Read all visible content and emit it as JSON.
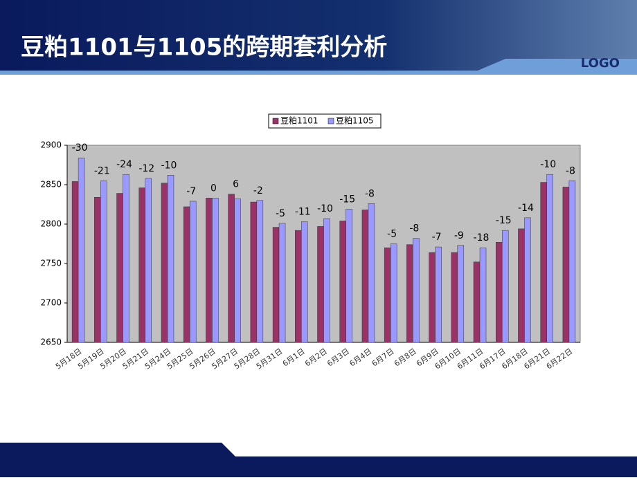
{
  "header": {
    "title": "豆粕1101与1105的跨期套利分析",
    "logo": "LOGO"
  },
  "chart_data": {
    "type": "bar",
    "categories": [
      "5月18日",
      "5月19日",
      "5月20日",
      "5月21日",
      "5月24日",
      "5月25日",
      "5月26日",
      "5月27日",
      "5月28日",
      "5月31日",
      "6月1日",
      "6月2日",
      "6月3日",
      "6月4日",
      "6月7日",
      "6月8日",
      "6月9日",
      "6月10日",
      "6月11日",
      "6月17日",
      "6月18日",
      "6月21日",
      "6月22日"
    ],
    "series": [
      {
        "name": "豆粕1101",
        "color": "#993366",
        "values": [
          2854,
          2834,
          2839,
          2846,
          2852,
          2822,
          2833,
          2838,
          2828,
          2796,
          2792,
          2797,
          2804,
          2818,
          2770,
          2774,
          2764,
          2764,
          2752,
          2777,
          2794,
          2853,
          2847
        ]
      },
      {
        "name": "豆粕1105",
        "color": "#9999ff",
        "values": [
          2884,
          2855,
          2863,
          2858,
          2862,
          2829,
          2833,
          2832,
          2830,
          2801,
          2803,
          2807,
          2819,
          2826,
          2775,
          2782,
          2771,
          2773,
          2770,
          2792,
          2808,
          2863,
          2855
        ]
      }
    ],
    "spread": [
      -30,
      -21,
      -24,
      -12,
      -10,
      -7,
      0,
      6,
      -2,
      -5,
      -11,
      -10,
      -15,
      -8,
      -5,
      -8,
      -7,
      -9,
      -18,
      -15,
      -14,
      -10,
      -8
    ],
    "ylim": [
      2650,
      2900
    ],
    "yticks": [
      2650,
      2700,
      2750,
      2800,
      2850,
      2900
    ],
    "legend": "top",
    "plot_background": "#c0c0c0"
  }
}
